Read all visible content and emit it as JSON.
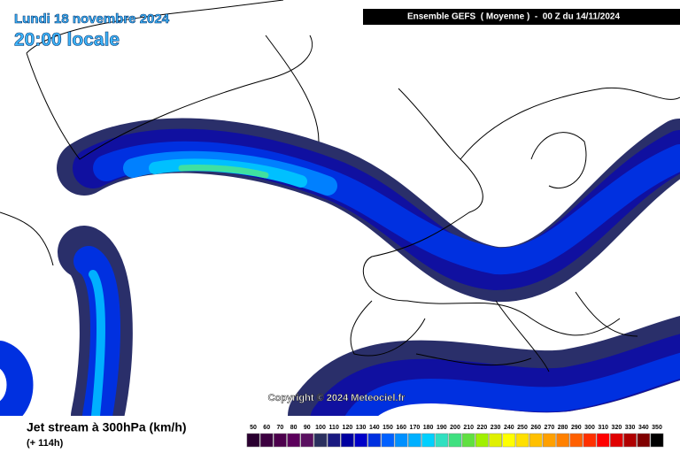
{
  "header": {
    "date": "Lundi 18 novembre 2024",
    "time": "20:00 locale",
    "run": "Ensemble GEFS  ( Moyenne )  -  00 Z du 14/11/2024"
  },
  "map": {
    "copyright": "Copyright © 2024 Meteociel.fr"
  },
  "footer": {
    "title": "Jet stream à 300hPa (km/h)",
    "lead": "(+ 114h)"
  },
  "legend": {
    "labels": [
      50,
      60,
      70,
      80,
      90,
      100,
      110,
      120,
      130,
      140,
      150,
      160,
      170,
      180,
      190,
      200,
      210,
      220,
      230,
      240,
      250,
      260,
      270,
      280,
      290,
      300,
      310,
      320,
      330,
      340,
      350
    ],
    "colors": [
      "#2a0030",
      "#3c0040",
      "#4c004c",
      "#5c005c",
      "#5a1060",
      "#2a2f5e",
      "#1a1a80",
      "#0000a0",
      "#0000c8",
      "#0030e0",
      "#0060ff",
      "#0090ff",
      "#00b0ff",
      "#00d0ff",
      "#30e0c0",
      "#40e080",
      "#60e040",
      "#a0f000",
      "#e0f000",
      "#ffff00",
      "#ffe000",
      "#ffc000",
      "#ffa000",
      "#ff8000",
      "#ff6000",
      "#ff3000",
      "#ff0000",
      "#e00000",
      "#b00000",
      "#800000",
      "#000000"
    ]
  }
}
